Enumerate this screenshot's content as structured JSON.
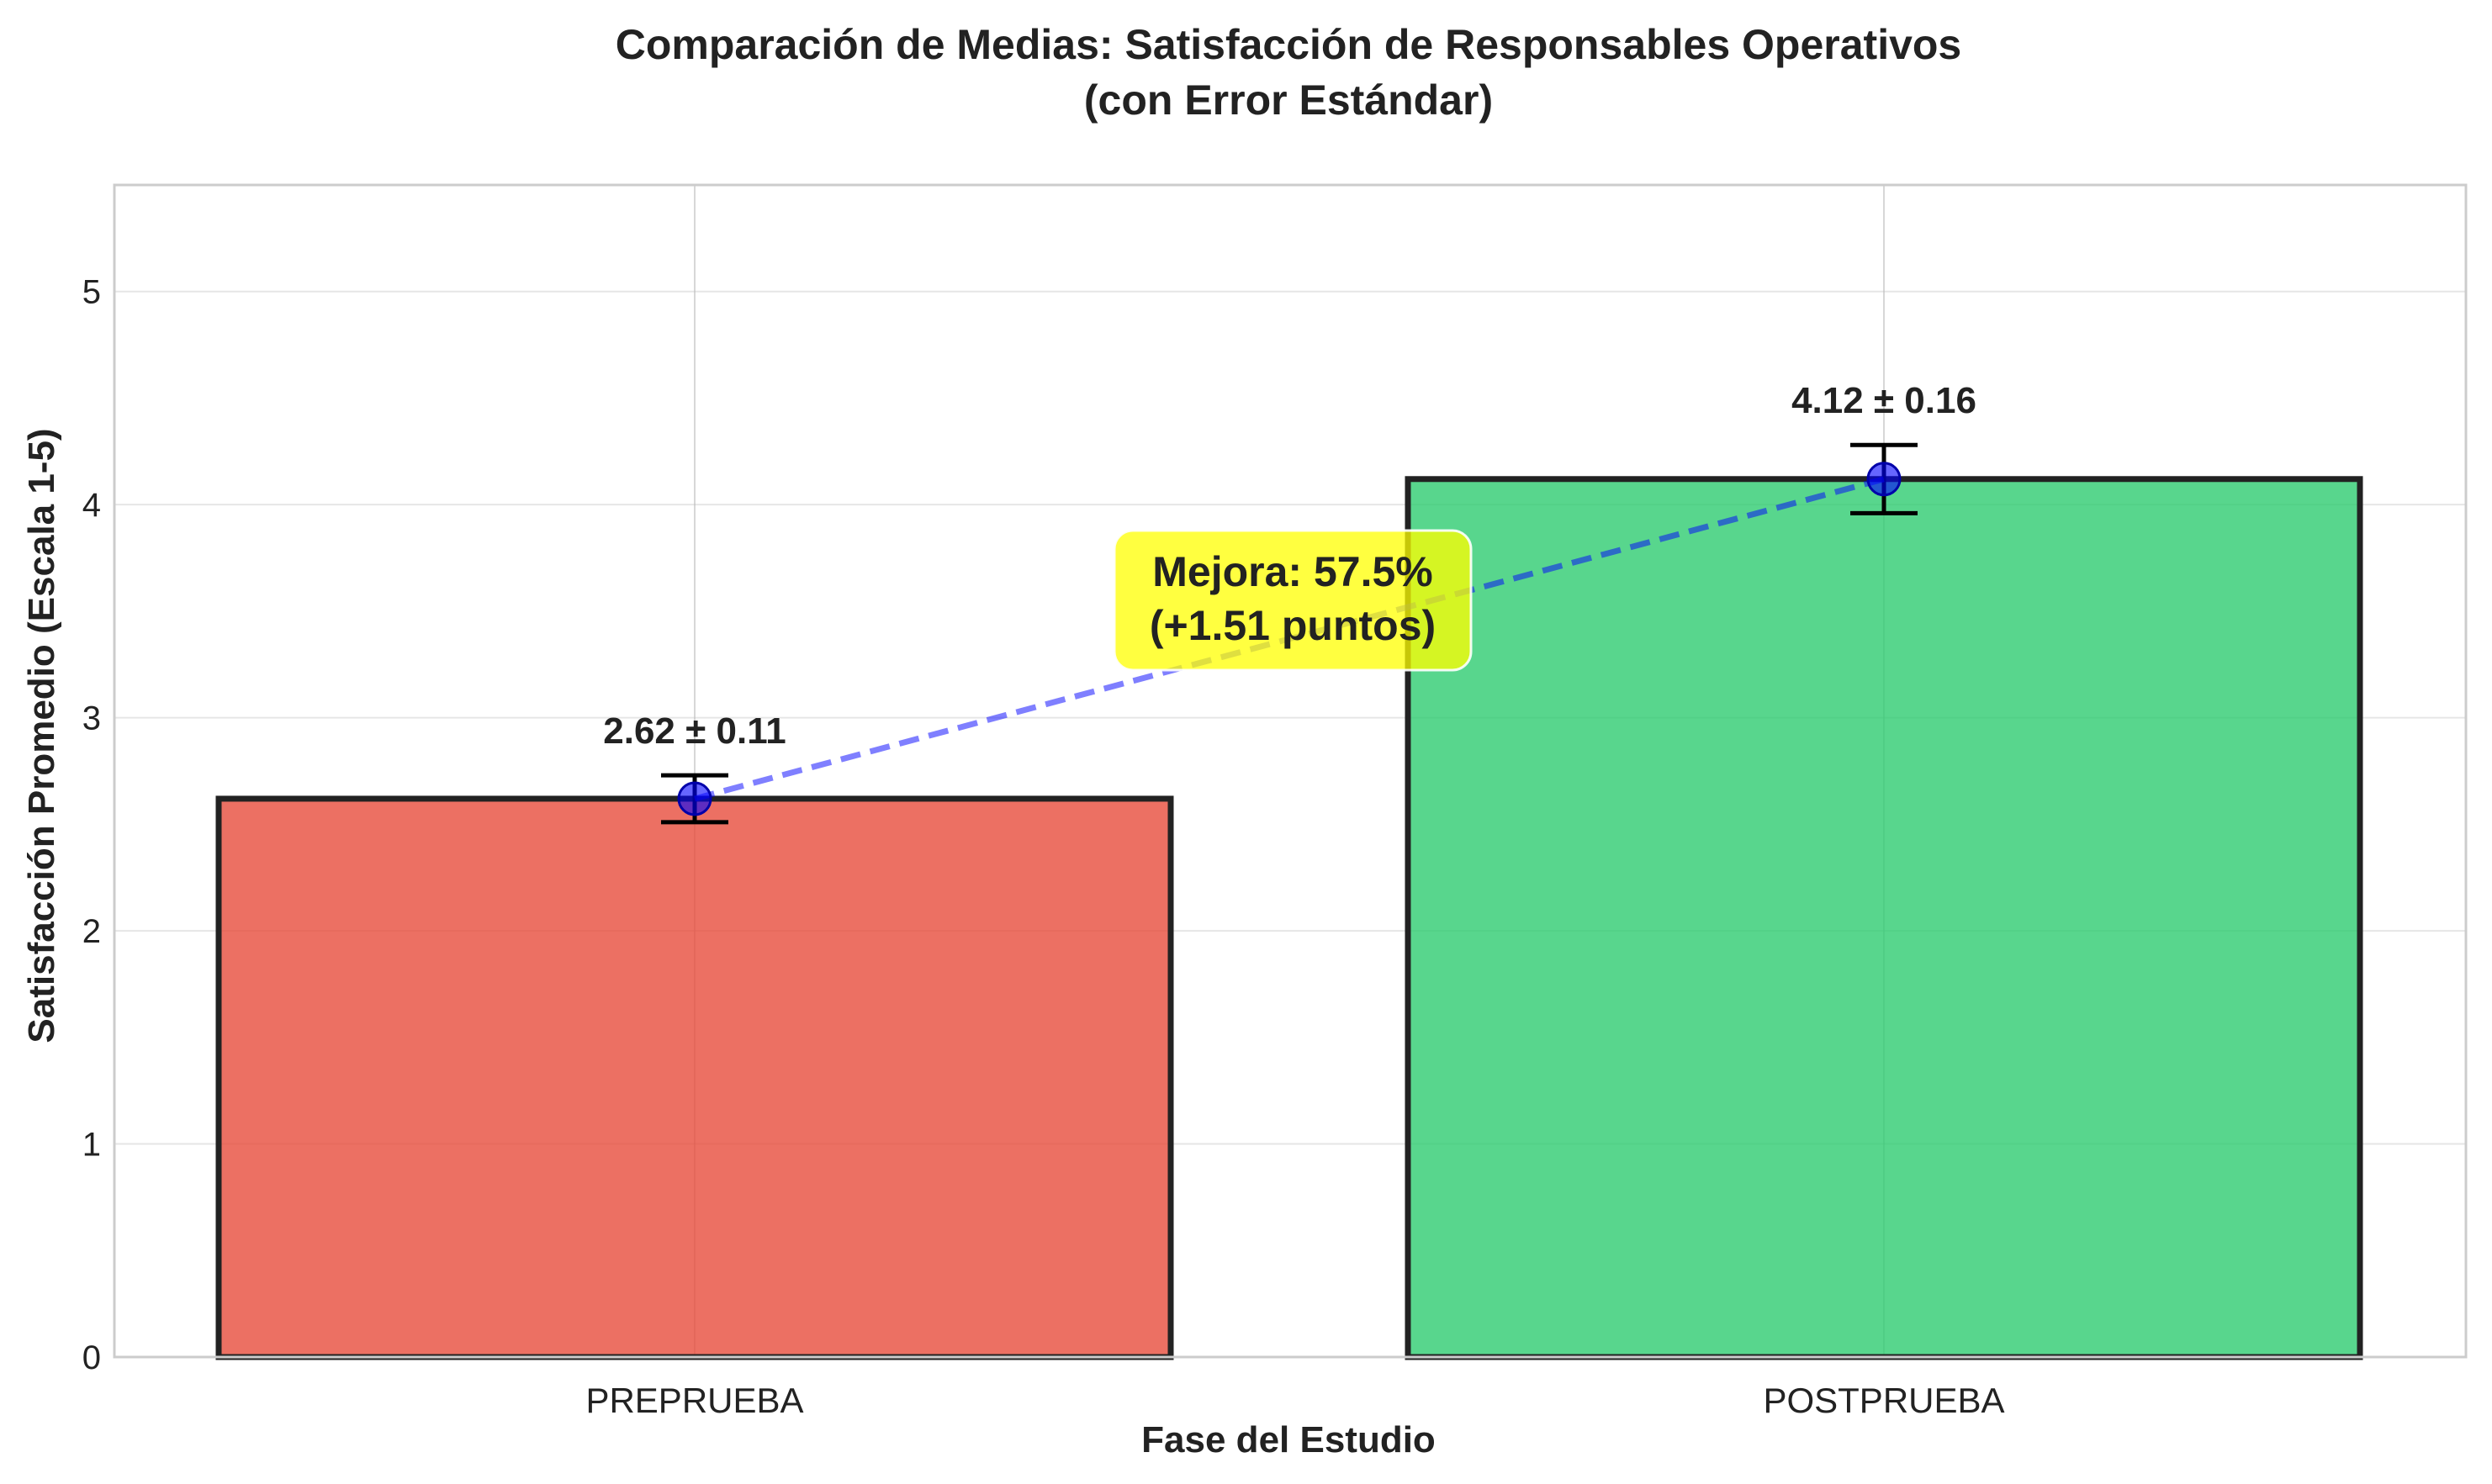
{
  "chart_data": {
    "type": "bar",
    "title_lines": [
      "Comparación de Medias: Satisfacción de Responsables Operativos",
      "(con Error Estándar)"
    ],
    "xlabel": "Fase del Estudio",
    "ylabel": "Satisfacción Promedio (Escala 1-5)",
    "categories": [
      "PREPRUEBA",
      "POSTPRUEBA"
    ],
    "values": [
      2.62,
      4.12
    ],
    "errors": [
      0.11,
      0.16
    ],
    "value_labels": [
      "2.62 ± 0.11",
      "4.12 ± 0.16"
    ],
    "bar_colors": [
      "#E74C3C",
      "#2ECC71"
    ],
    "ylim": [
      0,
      5.5
    ],
    "yticks": [
      0,
      1,
      2,
      3,
      4,
      5
    ],
    "grid": true,
    "annotation": {
      "lines": [
        "Mejora: 57.5%",
        "(+1.51 puntos)"
      ],
      "background": "#FFFF00"
    },
    "connector_color": "#0000FF"
  }
}
